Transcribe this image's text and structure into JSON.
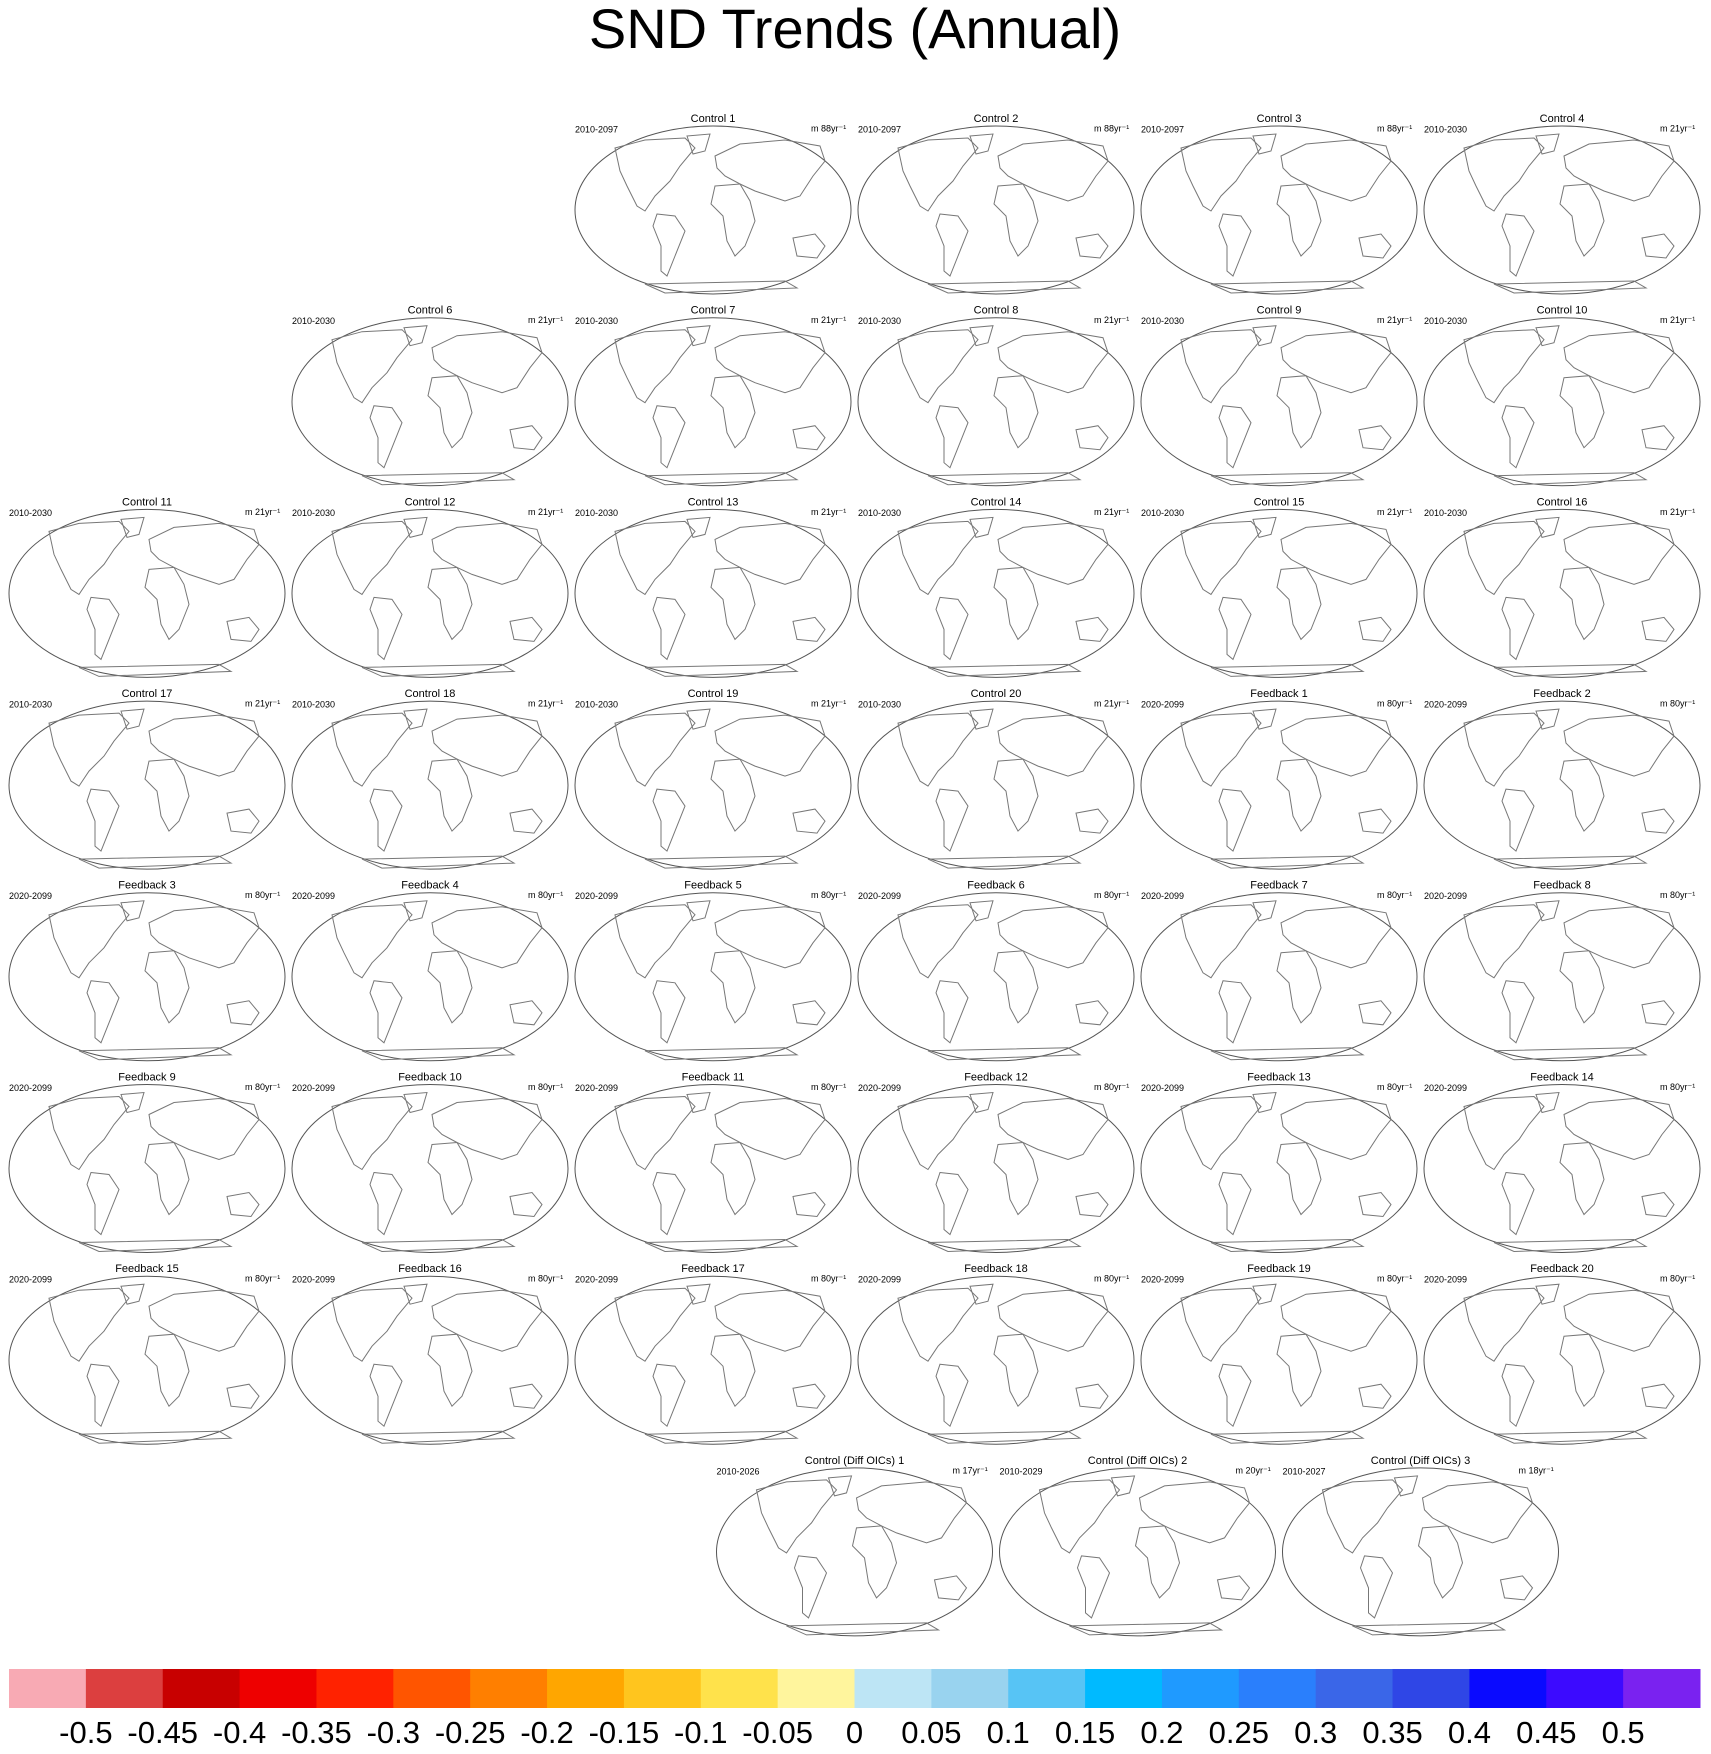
{
  "header": {
    "title": "SND Trends (Annual)"
  },
  "panels": [
    {
      "title": "Control 1",
      "period": "2010-2097",
      "units": "m 88yr⁻¹"
    },
    {
      "title": "Control 2",
      "period": "2010-2097",
      "units": "m 88yr⁻¹"
    },
    {
      "title": "Control 3",
      "period": "2010-2097",
      "units": "m 88yr⁻¹"
    },
    {
      "title": "Control 4",
      "period": "2010-2030",
      "units": "m 21yr⁻¹"
    },
    {
      "title": "Control 6",
      "period": "2010-2030",
      "units": "m 21yr⁻¹"
    },
    {
      "title": "Control 7",
      "period": "2010-2030",
      "units": "m 21yr⁻¹"
    },
    {
      "title": "Control 8",
      "period": "2010-2030",
      "units": "m 21yr⁻¹"
    },
    {
      "title": "Control 9",
      "period": "2010-2030",
      "units": "m 21yr⁻¹"
    },
    {
      "title": "Control 10",
      "period": "2010-2030",
      "units": "m 21yr⁻¹"
    },
    {
      "title": "Control 11",
      "period": "2010-2030",
      "units": "m 21yr⁻¹"
    },
    {
      "title": "Control 12",
      "period": "2010-2030",
      "units": "m 21yr⁻¹"
    },
    {
      "title": "Control 13",
      "period": "2010-2030",
      "units": "m 21yr⁻¹"
    },
    {
      "title": "Control 14",
      "period": "2010-2030",
      "units": "m 21yr⁻¹"
    },
    {
      "title": "Control 15",
      "period": "2010-2030",
      "units": "m 21yr⁻¹"
    },
    {
      "title": "Control 16",
      "period": "2010-2030",
      "units": "m 21yr⁻¹"
    },
    {
      "title": "Control 17",
      "period": "2010-2030",
      "units": "m 21yr⁻¹"
    },
    {
      "title": "Control 18",
      "period": "2010-2030",
      "units": "m 21yr⁻¹"
    },
    {
      "title": "Control 19",
      "period": "2010-2030",
      "units": "m 21yr⁻¹"
    },
    {
      "title": "Control 20",
      "period": "2010-2030",
      "units": "m 21yr⁻¹"
    },
    {
      "title": "Feedback 1",
      "period": "2020-2099",
      "units": "m 80yr⁻¹"
    },
    {
      "title": "Feedback 2",
      "period": "2020-2099",
      "units": "m 80yr⁻¹"
    },
    {
      "title": "Feedback 3",
      "period": "2020-2099",
      "units": "m 80yr⁻¹"
    },
    {
      "title": "Feedback 4",
      "period": "2020-2099",
      "units": "m 80yr⁻¹"
    },
    {
      "title": "Feedback 5",
      "period": "2020-2099",
      "units": "m 80yr⁻¹"
    },
    {
      "title": "Feedback 6",
      "period": "2020-2099",
      "units": "m 80yr⁻¹"
    },
    {
      "title": "Feedback 7",
      "period": "2020-2099",
      "units": "m 80yr⁻¹"
    },
    {
      "title": "Feedback 8",
      "period": "2020-2099",
      "units": "m 80yr⁻¹"
    },
    {
      "title": "Feedback 9",
      "period": "2020-2099",
      "units": "m 80yr⁻¹"
    },
    {
      "title": "Feedback 10",
      "period": "2020-2099",
      "units": "m 80yr⁻¹"
    },
    {
      "title": "Feedback 11",
      "period": "2020-2099",
      "units": "m 80yr⁻¹"
    },
    {
      "title": "Feedback 12",
      "period": "2020-2099",
      "units": "m 80yr⁻¹"
    },
    {
      "title": "Feedback 13",
      "period": "2020-2099",
      "units": "m 80yr⁻¹"
    },
    {
      "title": "Feedback 14",
      "period": "2020-2099",
      "units": "m 80yr⁻¹"
    },
    {
      "title": "Feedback 15",
      "period": "2020-2099",
      "units": "m 80yr⁻¹"
    },
    {
      "title": "Feedback 16",
      "period": "2020-2099",
      "units": "m 80yr⁻¹"
    },
    {
      "title": "Feedback 17",
      "period": "2020-2099",
      "units": "m 80yr⁻¹"
    },
    {
      "title": "Feedback 18",
      "period": "2020-2099",
      "units": "m 80yr⁻¹"
    },
    {
      "title": "Feedback 19",
      "period": "2020-2099",
      "units": "m 80yr⁻¹"
    },
    {
      "title": "Feedback 20",
      "period": "2020-2099",
      "units": "m 80yr⁻¹"
    },
    {
      "title": "Control (Diff OICs) 1",
      "period": "2010-2026",
      "units": "m 17yr⁻¹"
    },
    {
      "title": "Control (Diff OICs) 2",
      "period": "2010-2029",
      "units": "m 20yr⁻¹"
    },
    {
      "title": "Control (Diff OICs) 3",
      "period": "2010-2027",
      "units": "m 18yr⁻¹"
    }
  ],
  "colorbar": {
    "colors": [
      "#f8aab4",
      "#dc3f3f",
      "#c80000",
      "#ee0000",
      "#ff2200",
      "#ff5500",
      "#ff7f00",
      "#ffa600",
      "#ffc51e",
      "#ffe24b",
      "#fff59d",
      "#bde5f5",
      "#99d3ef",
      "#57c4f5",
      "#00baff",
      "#1f9aff",
      "#2a7ffc",
      "#3a66e8",
      "#2f46e6",
      "#0a0aff",
      "#3c0aff",
      "#7a22f0"
    ],
    "ticks": [
      -0.5,
      -0.45,
      -0.4,
      -0.35,
      -0.3,
      -0.25,
      -0.2,
      -0.15,
      -0.1,
      -0.05,
      0,
      0.05,
      0.1,
      0.15,
      0.2,
      0.25,
      0.3,
      0.35,
      0.4,
      0.45,
      0.5
    ]
  }
}
